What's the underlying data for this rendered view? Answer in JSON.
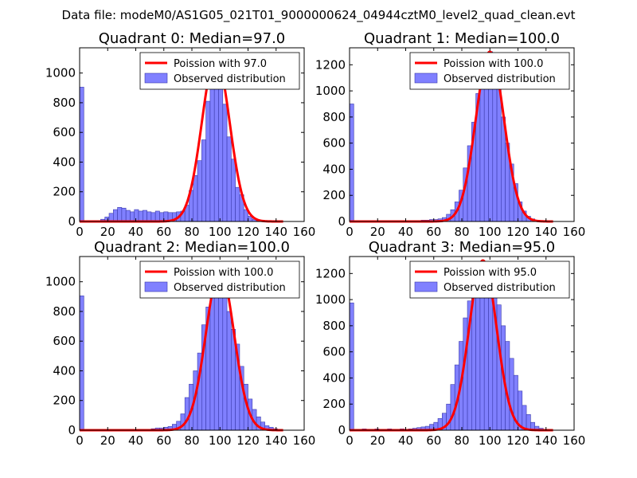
{
  "figure": {
    "suptitle": "Data file: modeM0/AS1G05_021T01_9000000624_04944cztM0_level2_quad_clean.evt"
  },
  "colors": {
    "bar_fill": "#8080ff",
    "bar_edge": "#3a3aaa",
    "poisson_line": "#ff0000",
    "axis": "#000000"
  },
  "chart_data": [
    {
      "type": "bar",
      "title": "Quadrant 0: Median=97.0",
      "xlim": [
        0,
        160
      ],
      "ylim": [
        0,
        1170
      ],
      "xticks": [
        0,
        20,
        40,
        60,
        80,
        100,
        120,
        140,
        160
      ],
      "yticks": [
        0,
        200,
        400,
        600,
        800,
        1000
      ],
      "bin_width": 3,
      "legend": {
        "line_label": "Poission with 97.0",
        "bar_label": "Observed distribution",
        "loc": "upper right"
      },
      "poisson_mean": 97.0,
      "poisson_peak": 1110,
      "bins": [
        [
          0,
          905
        ],
        [
          3,
          0
        ],
        [
          6,
          0
        ],
        [
          9,
          0
        ],
        [
          12,
          5
        ],
        [
          15,
          15
        ],
        [
          18,
          30
        ],
        [
          21,
          55
        ],
        [
          24,
          80
        ],
        [
          27,
          95
        ],
        [
          30,
          90
        ],
        [
          33,
          75
        ],
        [
          36,
          65
        ],
        [
          39,
          80
        ],
        [
          42,
          70
        ],
        [
          45,
          75
        ],
        [
          48,
          65
        ],
        [
          51,
          60
        ],
        [
          54,
          70
        ],
        [
          57,
          60
        ],
        [
          60,
          65
        ],
        [
          63,
          60
        ],
        [
          66,
          60
        ],
        [
          69,
          65
        ],
        [
          72,
          70
        ],
        [
          75,
          110
        ],
        [
          78,
          210
        ],
        [
          81,
          310
        ],
        [
          84,
          410
        ],
        [
          87,
          550
        ],
        [
          90,
          810
        ],
        [
          93,
          960
        ],
        [
          96,
          1080
        ],
        [
          99,
          1020
        ],
        [
          102,
          790
        ],
        [
          105,
          570
        ],
        [
          108,
          420
        ],
        [
          111,
          230
        ],
        [
          114,
          180
        ],
        [
          117,
          80
        ],
        [
          120,
          35
        ],
        [
          123,
          15
        ],
        [
          126,
          5
        ]
      ]
    },
    {
      "type": "bar",
      "title": "Quadrant 1: Median=100.0",
      "xlim": [
        0,
        160
      ],
      "ylim": [
        0,
        1330
      ],
      "xticks": [
        0,
        20,
        40,
        60,
        80,
        100,
        120,
        140,
        160
      ],
      "yticks": [
        0,
        200,
        400,
        600,
        800,
        1000,
        1200
      ],
      "bin_width": 3,
      "legend": {
        "line_label": "Poission with 100.0",
        "bar_label": "Observed distribution",
        "loc": "upper right"
      },
      "poisson_mean": 100.0,
      "poisson_peak": 1300,
      "bins": [
        [
          0,
          900
        ],
        [
          45,
          5
        ],
        [
          48,
          5
        ],
        [
          51,
          10
        ],
        [
          54,
          10
        ],
        [
          57,
          15
        ],
        [
          60,
          15
        ],
        [
          63,
          20
        ],
        [
          66,
          30
        ],
        [
          69,
          55
        ],
        [
          72,
          90
        ],
        [
          75,
          150
        ],
        [
          78,
          240
        ],
        [
          81,
          410
        ],
        [
          84,
          580
        ],
        [
          87,
          760
        ],
        [
          90,
          980
        ],
        [
          93,
          1100
        ],
        [
          96,
          1250
        ],
        [
          99,
          1300
        ],
        [
          102,
          1180
        ],
        [
          105,
          1020
        ],
        [
          108,
          800
        ],
        [
          111,
          600
        ],
        [
          114,
          440
        ],
        [
          117,
          290
        ],
        [
          120,
          150
        ],
        [
          123,
          80
        ],
        [
          126,
          40
        ],
        [
          129,
          20
        ],
        [
          132,
          10
        ]
      ]
    },
    {
      "type": "bar",
      "title": "Quadrant 2: Median=100.0",
      "xlim": [
        0,
        160
      ],
      "ylim": [
        0,
        1170
      ],
      "xticks": [
        0,
        20,
        40,
        60,
        80,
        100,
        120,
        140,
        160
      ],
      "yticks": [
        0,
        200,
        400,
        600,
        800,
        1000
      ],
      "bin_width": 3,
      "legend": {
        "line_label": "Poission with 100.0",
        "bar_label": "Observed distribution",
        "loc": "upper right"
      },
      "poisson_mean": 100.0,
      "poisson_peak": 1080,
      "bins": [
        [
          0,
          905
        ],
        [
          48,
          5
        ],
        [
          51,
          10
        ],
        [
          54,
          15
        ],
        [
          57,
          15
        ],
        [
          60,
          20
        ],
        [
          63,
          25
        ],
        [
          66,
          40
        ],
        [
          69,
          60
        ],
        [
          72,
          110
        ],
        [
          75,
          220
        ],
        [
          78,
          310
        ],
        [
          81,
          400
        ],
        [
          84,
          520
        ],
        [
          87,
          710
        ],
        [
          90,
          830
        ],
        [
          93,
          920
        ],
        [
          96,
          1000
        ],
        [
          99,
          1070
        ],
        [
          102,
          900
        ],
        [
          105,
          800
        ],
        [
          108,
          680
        ],
        [
          111,
          580
        ],
        [
          114,
          430
        ],
        [
          117,
          310
        ],
        [
          120,
          210
        ],
        [
          123,
          140
        ],
        [
          126,
          90
        ],
        [
          129,
          55
        ],
        [
          132,
          30
        ],
        [
          135,
          20
        ],
        [
          138,
          10
        ]
      ]
    },
    {
      "type": "bar",
      "title": "Quadrant 3: Median=95.0",
      "xlim": [
        0,
        160
      ],
      "ylim": [
        0,
        1330
      ],
      "xticks": [
        0,
        20,
        40,
        60,
        80,
        100,
        120,
        140,
        160
      ],
      "yticks": [
        0,
        200,
        400,
        600,
        800,
        1000,
        1200
      ],
      "bin_width": 3,
      "legend": {
        "line_label": "Poission with 95.0",
        "bar_label": "Observed distribution",
        "loc": "upper right"
      },
      "poisson_mean": 95.0,
      "poisson_peak": 1300,
      "bins": [
        [
          0,
          975
        ],
        [
          9,
          10
        ],
        [
          18,
          10
        ],
        [
          27,
          10
        ],
        [
          36,
          10
        ],
        [
          42,
          10
        ],
        [
          45,
          15
        ],
        [
          48,
          20
        ],
        [
          51,
          25
        ],
        [
          54,
          30
        ],
        [
          57,
          45
        ],
        [
          60,
          60
        ],
        [
          63,
          90
        ],
        [
          66,
          130
        ],
        [
          69,
          200
        ],
        [
          72,
          350
        ],
        [
          75,
          500
        ],
        [
          78,
          680
        ],
        [
          81,
          860
        ],
        [
          84,
          990
        ],
        [
          87,
          1080
        ],
        [
          90,
          1150
        ],
        [
          93,
          1200
        ],
        [
          96,
          1250
        ],
        [
          99,
          1280
        ],
        [
          102,
          1100
        ],
        [
          105,
          960
        ],
        [
          108,
          800
        ],
        [
          111,
          680
        ],
        [
          114,
          550
        ],
        [
          117,
          420
        ],
        [
          120,
          300
        ],
        [
          123,
          190
        ],
        [
          126,
          120
        ],
        [
          129,
          60
        ],
        [
          132,
          30
        ],
        [
          135,
          15
        ]
      ]
    }
  ]
}
